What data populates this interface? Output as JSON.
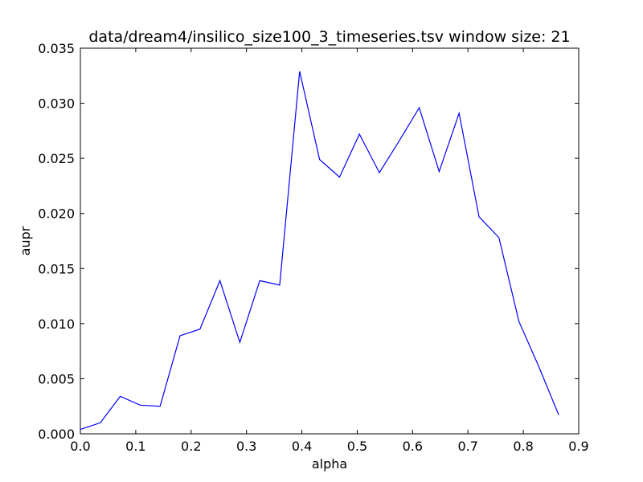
{
  "chart_data": {
    "type": "line",
    "title": "data/dream4/insilico_size100_3_timeseries.tsv window size: 21",
    "xlabel": "alpha",
    "ylabel": "aupr",
    "xlim": [
      0.0,
      0.9
    ],
    "ylim": [
      0.0,
      0.035
    ],
    "xticks": [
      "0.0",
      "0.1",
      "0.2",
      "0.3",
      "0.4",
      "0.5",
      "0.6",
      "0.7",
      "0.8",
      "0.9"
    ],
    "yticks": [
      "0.000",
      "0.005",
      "0.010",
      "0.015",
      "0.020",
      "0.025",
      "0.030",
      "0.035"
    ],
    "grid": false,
    "series": [
      {
        "color": "#0000ff",
        "x": [
          0.0,
          0.036,
          0.072,
          0.108,
          0.144,
          0.18,
          0.216,
          0.252,
          0.288,
          0.324,
          0.36,
          0.396,
          0.432,
          0.468,
          0.504,
          0.54,
          0.576,
          0.612,
          0.648,
          0.684,
          0.72,
          0.756,
          0.792,
          0.828,
          0.864
        ],
        "y": [
          0.0004,
          0.001,
          0.0034,
          0.0026,
          0.0025,
          0.0089,
          0.0095,
          0.0139,
          0.0083,
          0.0139,
          0.0135,
          0.0329,
          0.0249,
          0.0233,
          0.0272,
          0.0237,
          0.0266,
          0.0296,
          0.0238,
          0.0291,
          0.0197,
          0.0178,
          0.0102,
          0.0061,
          0.0017
        ]
      }
    ]
  }
}
